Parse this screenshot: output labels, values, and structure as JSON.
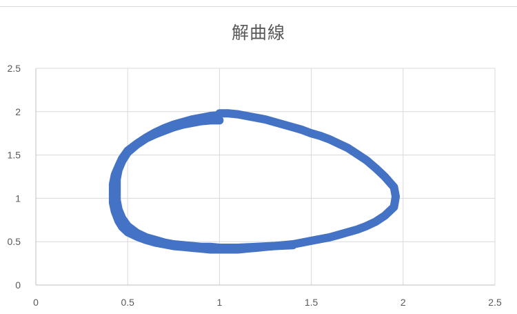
{
  "chart_data": {
    "type": "scatter",
    "title": "解曲線",
    "xlabel": "",
    "ylabel": "",
    "xlim": [
      0,
      2.5
    ],
    "ylim": [
      0,
      2.5
    ],
    "x_ticks": [
      "0",
      "0.5",
      "1",
      "1.5",
      "2",
      "2.5"
    ],
    "y_ticks": [
      "0",
      "0.5",
      "1",
      "1.5",
      "2",
      "2.5"
    ],
    "grid": true,
    "legend": "none",
    "series_color": "#4472c4",
    "series": [
      {
        "x": [
          1.0,
          1.05,
          1.1,
          1.15,
          1.2,
          1.25,
          1.3,
          1.35,
          1.4,
          1.45,
          1.5,
          1.55,
          1.6,
          1.65,
          1.7,
          1.75,
          1.8,
          1.85,
          1.9,
          1.95,
          1.96,
          1.95,
          1.9,
          1.85,
          1.8,
          1.75,
          1.7,
          1.65,
          1.6,
          1.55,
          1.5,
          1.45,
          1.4,
          1.35,
          1.3,
          1.25,
          1.2,
          1.15,
          1.1,
          1.05,
          1.0,
          0.95,
          0.9,
          0.85,
          0.8,
          0.75,
          0.7,
          0.65,
          0.6,
          0.55,
          0.5,
          0.47,
          0.45,
          0.43,
          0.42,
          0.42,
          0.42,
          0.43,
          0.45,
          0.47,
          0.5,
          0.55,
          0.6,
          0.65,
          0.7,
          0.75,
          0.8,
          0.85,
          0.9,
          0.95,
          1.0
        ],
        "y": [
          1.98,
          1.98,
          1.97,
          1.95,
          1.93,
          1.91,
          1.88,
          1.85,
          1.82,
          1.79,
          1.75,
          1.72,
          1.68,
          1.63,
          1.58,
          1.51,
          1.44,
          1.35,
          1.25,
          1.13,
          1.02,
          0.9,
          0.8,
          0.73,
          0.68,
          0.64,
          0.61,
          0.58,
          0.55,
          0.53,
          0.51,
          0.49,
          0.47,
          0.46,
          0.45,
          0.44,
          0.43,
          0.42,
          0.41,
          0.41,
          0.41,
          0.41,
          0.42,
          0.43,
          0.44,
          0.45,
          0.47,
          0.49,
          0.52,
          0.56,
          0.61,
          0.67,
          0.74,
          0.85,
          0.95,
          1.05,
          1.16,
          1.27,
          1.37,
          1.46,
          1.55,
          1.63,
          1.7,
          1.76,
          1.81,
          1.85,
          1.88,
          1.91,
          1.93,
          1.95,
          1.96
        ]
      },
      {
        "x": [
          1.0,
          0.95,
          0.9,
          0.85,
          0.8,
          0.75,
          0.7,
          0.65,
          0.6,
          0.55,
          0.5,
          0.47,
          0.45,
          0.44,
          0.44,
          0.44,
          0.45,
          0.47,
          0.5,
          0.55,
          0.6,
          0.65,
          0.7,
          0.75,
          0.8,
          0.85,
          0.9,
          0.95,
          1.0,
          1.1,
          1.2,
          1.3,
          1.4
        ],
        "y": [
          1.9,
          1.9,
          1.89,
          1.87,
          1.85,
          1.82,
          1.78,
          1.74,
          1.69,
          1.62,
          1.53,
          1.43,
          1.33,
          1.22,
          1.1,
          0.98,
          0.87,
          0.77,
          0.68,
          0.6,
          0.55,
          0.52,
          0.49,
          0.47,
          0.46,
          0.45,
          0.44,
          0.44,
          0.43,
          0.43,
          0.44,
          0.45,
          0.46
        ]
      }
    ]
  }
}
